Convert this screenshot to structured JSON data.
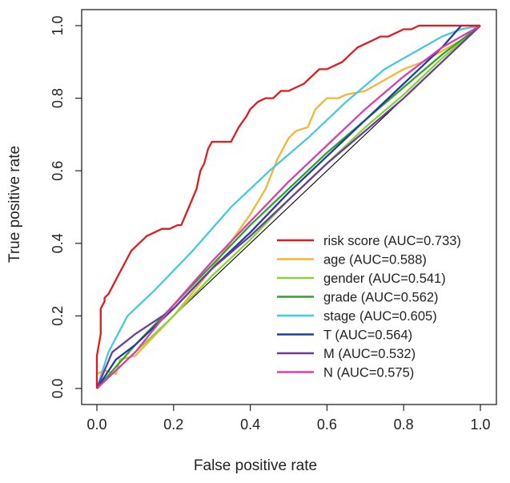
{
  "chart_data": {
    "type": "line",
    "title": "",
    "xlabel": "False positive rate",
    "ylabel": "True positive rate",
    "xlim": [
      0,
      1
    ],
    "ylim": [
      0,
      1
    ],
    "x_ticks": [
      "0.0",
      "0.2",
      "0.4",
      "0.6",
      "0.8",
      "1.0"
    ],
    "y_ticks": [
      "0.0",
      "0.2",
      "0.4",
      "0.6",
      "0.8",
      "1.0"
    ],
    "grid": false,
    "legend_position": "bottom-right",
    "reference_line": {
      "x": [
        0,
        1
      ],
      "y": [
        0,
        1
      ],
      "color": "#000000"
    },
    "series": [
      {
        "name": "risk score (AUC=0.733)",
        "color": "#e31a1c",
        "x": [
          0,
          0,
          0.01,
          0.01,
          0.02,
          0.02,
          0.03,
          0.04,
          0.05,
          0.06,
          0.07,
          0.08,
          0.09,
          0.11,
          0.12,
          0.13,
          0.15,
          0.17,
          0.19,
          0.21,
          0.22,
          0.24,
          0.26,
          0.27,
          0.28,
          0.29,
          0.3,
          0.31,
          0.32,
          0.35,
          0.36,
          0.37,
          0.39,
          0.4,
          0.41,
          0.42,
          0.44,
          0.46,
          0.48,
          0.5,
          0.52,
          0.54,
          0.56,
          0.58,
          0.6,
          0.62,
          0.64,
          0.66,
          0.68,
          0.7,
          0.72,
          0.74,
          0.76,
          0.78,
          0.8,
          0.82,
          0.84,
          0.86,
          0.88,
          0.9,
          0.92,
          0.94,
          0.96,
          0.98,
          1
        ],
        "y": [
          0,
          0.09,
          0.15,
          0.22,
          0.24,
          0.25,
          0.26,
          0.28,
          0.3,
          0.32,
          0.34,
          0.36,
          0.38,
          0.4,
          0.41,
          0.42,
          0.43,
          0.44,
          0.44,
          0.45,
          0.45,
          0.5,
          0.55,
          0.6,
          0.62,
          0.66,
          0.68,
          0.68,
          0.68,
          0.68,
          0.7,
          0.72,
          0.75,
          0.77,
          0.78,
          0.79,
          0.8,
          0.8,
          0.82,
          0.82,
          0.83,
          0.84,
          0.86,
          0.88,
          0.88,
          0.89,
          0.9,
          0.92,
          0.94,
          0.95,
          0.96,
          0.97,
          0.97,
          0.98,
          0.99,
          0.99,
          1.0,
          1.0,
          1.0,
          1.0,
          1.0,
          1.0,
          1.0,
          1.0,
          1.0
        ]
      },
      {
        "name": "age (AUC=0.588)",
        "color": "#f2b53a",
        "x": [
          0,
          0.02,
          0.05,
          0.06,
          0.1,
          0.2,
          0.3,
          0.4,
          0.44,
          0.47,
          0.5,
          0.52,
          0.55,
          0.57,
          0.6,
          0.63,
          0.65,
          0.7,
          0.75,
          0.8,
          0.85,
          0.9,
          0.95,
          1
        ],
        "y": [
          0.04,
          0.05,
          0.04,
          0.08,
          0.09,
          0.2,
          0.33,
          0.48,
          0.55,
          0.63,
          0.69,
          0.71,
          0.72,
          0.77,
          0.8,
          0.8,
          0.81,
          0.82,
          0.85,
          0.88,
          0.9,
          0.93,
          0.96,
          1.0
        ]
      },
      {
        "name": "gender (AUC=0.541)",
        "color": "#8bd13a",
        "x": [
          0,
          0.1,
          0.2,
          0.3,
          0.4,
          0.5,
          0.6,
          0.7,
          0.8,
          0.9,
          1
        ],
        "y": [
          0,
          0.1,
          0.2,
          0.31,
          0.41,
          0.52,
          0.62,
          0.72,
          0.81,
          0.91,
          1.0
        ]
      },
      {
        "name": "grade (AUC=0.562)",
        "color": "#33a02c",
        "x": [
          0,
          0.1,
          0.2,
          0.3,
          0.4,
          0.5,
          0.6,
          0.7,
          0.8,
          0.9,
          1
        ],
        "y": [
          0,
          0.12,
          0.23,
          0.34,
          0.45,
          0.55,
          0.65,
          0.74,
          0.83,
          0.92,
          1.0
        ]
      },
      {
        "name": "stage (AUC=0.605)",
        "color": "#46c9dc",
        "x": [
          0,
          0.03,
          0.08,
          0.15,
          0.25,
          0.35,
          0.45,
          0.55,
          0.65,
          0.75,
          0.85,
          0.9,
          0.95,
          1
        ],
        "y": [
          0,
          0.1,
          0.2,
          0.27,
          0.38,
          0.5,
          0.6,
          0.69,
          0.79,
          0.88,
          0.94,
          0.97,
          0.99,
          1.0
        ]
      },
      {
        "name": "T (AUC=0.564)",
        "color": "#1f3f9a",
        "x": [
          0,
          0.05,
          0.1,
          0.2,
          0.3,
          0.4,
          0.5,
          0.6,
          0.7,
          0.8,
          0.9,
          0.95,
          1
        ],
        "y": [
          0,
          0.08,
          0.12,
          0.22,
          0.33,
          0.43,
          0.54,
          0.64,
          0.74,
          0.84,
          0.94,
          1.0,
          1.0
        ]
      },
      {
        "name": "M (AUC=0.532)",
        "color": "#6a3d9a",
        "x": [
          0,
          0.04,
          0.1,
          0.2,
          0.3,
          0.4,
          0.5,
          0.6,
          0.7,
          0.8,
          0.9,
          1
        ],
        "y": [
          0,
          0.1,
          0.15,
          0.22,
          0.33,
          0.42,
          0.52,
          0.62,
          0.71,
          0.8,
          0.9,
          1.0
        ]
      },
      {
        "name": "N (AUC=0.575)",
        "color": "#d63fb1",
        "x": [
          0,
          0.1,
          0.2,
          0.3,
          0.4,
          0.5,
          0.6,
          0.7,
          0.8,
          0.9,
          1
        ],
        "y": [
          0,
          0.1,
          0.23,
          0.35,
          0.46,
          0.57,
          0.67,
          0.77,
          0.86,
          0.94,
          1.0
        ]
      }
    ]
  }
}
